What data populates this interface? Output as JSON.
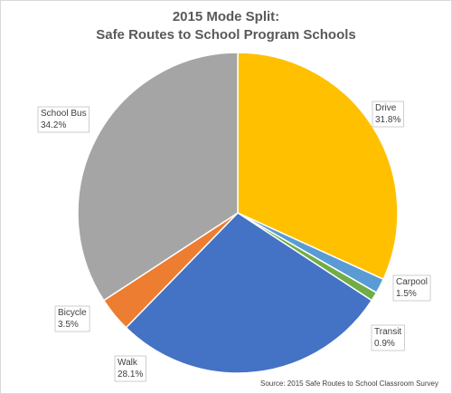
{
  "chart_data": {
    "type": "pie",
    "title_lines": [
      "2015 Mode Split:",
      "Safe Routes to School Program Schools"
    ],
    "slices": [
      {
        "label": "Drive",
        "value": 31.8,
        "display": "31.8%",
        "color": "#FFC000"
      },
      {
        "label": "Carpool",
        "value": 1.5,
        "display": "1.5%",
        "color": "#5B9BD5"
      },
      {
        "label": "Transit",
        "value": 0.9,
        "display": "0.9%",
        "color": "#70AD47"
      },
      {
        "label": "Walk",
        "value": 28.1,
        "display": "28.1%",
        "color": "#4472C4"
      },
      {
        "label": "Bicycle",
        "value": 3.5,
        "display": "3.5%",
        "color": "#ED7D31"
      },
      {
        "label": "School Bus",
        "value": 34.2,
        "display": "34.2%",
        "color": "#A5A5A5"
      }
    ],
    "legend": "none",
    "source": "Source: 2015  Safe Routes to School Classroom Survey"
  }
}
